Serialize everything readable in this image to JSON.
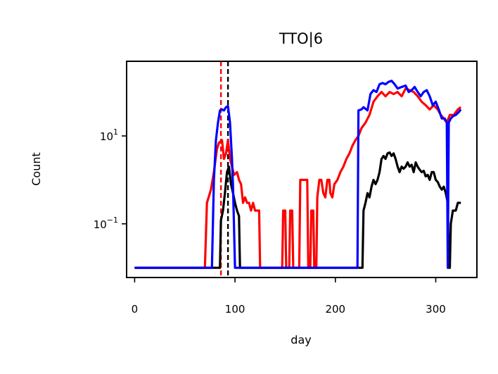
{
  "chart_data": {
    "type": "line",
    "title": "TTO|6",
    "xlabel": "day",
    "ylabel": "Count",
    "xlim": [
      -8,
      341
    ],
    "xticks": [
      0,
      100,
      200,
      300
    ],
    "x_tick_labels": [
      "0",
      "100",
      "200",
      "300"
    ],
    "yscale": "log",
    "ylim": [
      0.006,
      500
    ],
    "yticks": [
      {
        "value": 10,
        "base": "10",
        "exp": "1"
      },
      {
        "value": 0.1,
        "base": "10",
        "exp": "−1"
      }
    ],
    "grid": false,
    "legend": "none",
    "vlines": [
      {
        "x": 86,
        "color": "#ff0000",
        "style": "dashed"
      },
      {
        "x": 93,
        "color": "#000000",
        "style": "dashed"
      }
    ],
    "series": [
      {
        "color": "#ff0000",
        "points": [
          [
            0,
            0.01
          ],
          [
            70,
            0.01
          ],
          [
            72,
            0.3
          ],
          [
            76,
            0.6
          ],
          [
            79,
            1.5
          ],
          [
            82,
            5
          ],
          [
            84,
            7
          ],
          [
            87,
            8
          ],
          [
            89,
            3
          ],
          [
            91,
            4
          ],
          [
            93,
            8
          ],
          [
            95,
            3
          ],
          [
            97,
            2
          ],
          [
            99,
            1.3
          ],
          [
            102,
            1.5
          ],
          [
            104,
            1
          ],
          [
            106,
            0.8
          ],
          [
            108,
            0.3
          ],
          [
            110,
            0.4
          ],
          [
            112,
            0.3
          ],
          [
            114,
            0.3
          ],
          [
            116,
            0.2
          ],
          [
            118,
            0.3
          ],
          [
            120,
            0.2
          ],
          [
            124,
            0.2
          ],
          [
            125,
            0.01
          ],
          [
            147,
            0.01
          ],
          [
            148,
            0.2
          ],
          [
            150,
            0.2
          ],
          [
            151,
            0.01
          ],
          [
            154,
            0.01
          ],
          [
            155,
            0.2
          ],
          [
            157,
            0.2
          ],
          [
            158,
            0.01
          ],
          [
            164,
            0.01
          ],
          [
            165,
            1
          ],
          [
            172,
            1
          ],
          [
            173,
            0.01
          ],
          [
            175,
            0.01
          ],
          [
            176,
            0.2
          ],
          [
            178,
            0.2
          ],
          [
            179,
            0.01
          ],
          [
            181,
            0.01
          ],
          [
            182,
            0.4
          ],
          [
            184,
            1
          ],
          [
            186,
            1
          ],
          [
            188,
            0.5
          ],
          [
            190,
            0.4
          ],
          [
            192,
            1
          ],
          [
            194,
            1
          ],
          [
            195,
            0.5
          ],
          [
            197,
            0.4
          ],
          [
            199,
            0.8
          ],
          [
            202,
            1
          ],
          [
            205,
            1.5
          ],
          [
            208,
            2
          ],
          [
            211,
            3
          ],
          [
            214,
            4
          ],
          [
            217,
            6
          ],
          [
            220,
            8
          ],
          [
            223,
            10
          ],
          [
            226,
            15
          ],
          [
            230,
            20
          ],
          [
            234,
            30
          ],
          [
            238,
            60
          ],
          [
            242,
            80
          ],
          [
            246,
            100
          ],
          [
            250,
            80
          ],
          [
            254,
            100
          ],
          [
            258,
            90
          ],
          [
            262,
            100
          ],
          [
            266,
            80
          ],
          [
            270,
            120
          ],
          [
            274,
            110
          ],
          [
            278,
            100
          ],
          [
            282,
            80
          ],
          [
            286,
            60
          ],
          [
            290,
            50
          ],
          [
            294,
            40
          ],
          [
            298,
            50
          ],
          [
            302,
            40
          ],
          [
            305,
            30
          ],
          [
            308,
            25
          ],
          [
            311,
            20
          ],
          [
            314,
            30
          ],
          [
            318,
            30
          ],
          [
            322,
            40
          ],
          [
            325,
            45
          ]
        ]
      },
      {
        "color": "#000000",
        "points": [
          [
            0,
            0.01
          ],
          [
            85,
            0.01
          ],
          [
            86,
            0.12
          ],
          [
            88,
            0.2
          ],
          [
            90,
            0.5
          ],
          [
            92,
            1.5
          ],
          [
            94,
            2
          ],
          [
            96,
            0.8
          ],
          [
            98,
            0.5
          ],
          [
            100,
            0.3
          ],
          [
            102,
            0.2
          ],
          [
            104,
            0.15
          ],
          [
            105,
            0.01
          ],
          [
            227,
            0.01
          ],
          [
            228,
            0.2
          ],
          [
            230,
            0.3
          ],
          [
            232,
            0.5
          ],
          [
            234,
            0.4
          ],
          [
            236,
            0.7
          ],
          [
            238,
            1
          ],
          [
            240,
            0.8
          ],
          [
            242,
            1
          ],
          [
            244,
            1.5
          ],
          [
            246,
            3
          ],
          [
            248,
            3.5
          ],
          [
            250,
            3
          ],
          [
            252,
            4
          ],
          [
            254,
            4.2
          ],
          [
            256,
            3.5
          ],
          [
            258,
            4
          ],
          [
            260,
            3
          ],
          [
            262,
            2
          ],
          [
            264,
            1.5
          ],
          [
            266,
            2
          ],
          [
            268,
            1.8
          ],
          [
            270,
            2
          ],
          [
            272,
            2.5
          ],
          [
            274,
            2
          ],
          [
            276,
            2.2
          ],
          [
            278,
            1.5
          ],
          [
            280,
            2.5
          ],
          [
            282,
            2
          ],
          [
            284,
            1.7
          ],
          [
            286,
            1.5
          ],
          [
            288,
            1.6
          ],
          [
            290,
            1.2
          ],
          [
            292,
            1.3
          ],
          [
            294,
            1
          ],
          [
            296,
            1.5
          ],
          [
            298,
            1.5
          ],
          [
            300,
            1
          ],
          [
            302,
            0.9
          ],
          [
            304,
            0.7
          ],
          [
            306,
            0.6
          ],
          [
            308,
            0.7
          ],
          [
            310,
            0.5
          ],
          [
            312,
            0.3
          ],
          [
            313,
            0.01
          ],
          [
            314,
            0.01
          ],
          [
            315,
            0.1
          ],
          [
            317,
            0.2
          ],
          [
            320,
            0.2
          ],
          [
            322,
            0.3
          ],
          [
            325,
            0.3
          ]
        ]
      },
      {
        "color": "#0000ff",
        "points": [
          [
            0,
            0.01
          ],
          [
            77,
            0.01
          ],
          [
            79,
            1
          ],
          [
            81,
            8
          ],
          [
            83,
            20
          ],
          [
            85,
            38
          ],
          [
            87,
            40
          ],
          [
            89,
            38
          ],
          [
            91,
            45
          ],
          [
            93,
            48
          ],
          [
            95,
            20
          ],
          [
            97,
            3
          ],
          [
            98,
            0.7
          ],
          [
            100,
            0.01
          ],
          [
            222,
            0.01
          ],
          [
            223,
            38
          ],
          [
            226,
            40
          ],
          [
            228,
            45
          ],
          [
            232,
            38
          ],
          [
            235,
            90
          ],
          [
            238,
            110
          ],
          [
            241,
            100
          ],
          [
            244,
            150
          ],
          [
            247,
            160
          ],
          [
            250,
            150
          ],
          [
            253,
            170
          ],
          [
            256,
            180
          ],
          [
            259,
            150
          ],
          [
            262,
            120
          ],
          [
            266,
            130
          ],
          [
            270,
            140
          ],
          [
            273,
            100
          ],
          [
            276,
            110
          ],
          [
            279,
            130
          ],
          [
            282,
            100
          ],
          [
            285,
            80
          ],
          [
            288,
            100
          ],
          [
            291,
            110
          ],
          [
            294,
            80
          ],
          [
            297,
            50
          ],
          [
            300,
            60
          ],
          [
            303,
            40
          ],
          [
            306,
            25
          ],
          [
            309,
            25
          ],
          [
            311,
            20
          ],
          [
            312,
            0.01
          ],
          [
            313,
            20
          ],
          [
            315,
            25
          ],
          [
            317,
            28
          ],
          [
            320,
            30
          ],
          [
            323,
            35
          ],
          [
            325,
            40
          ]
        ]
      }
    ]
  }
}
